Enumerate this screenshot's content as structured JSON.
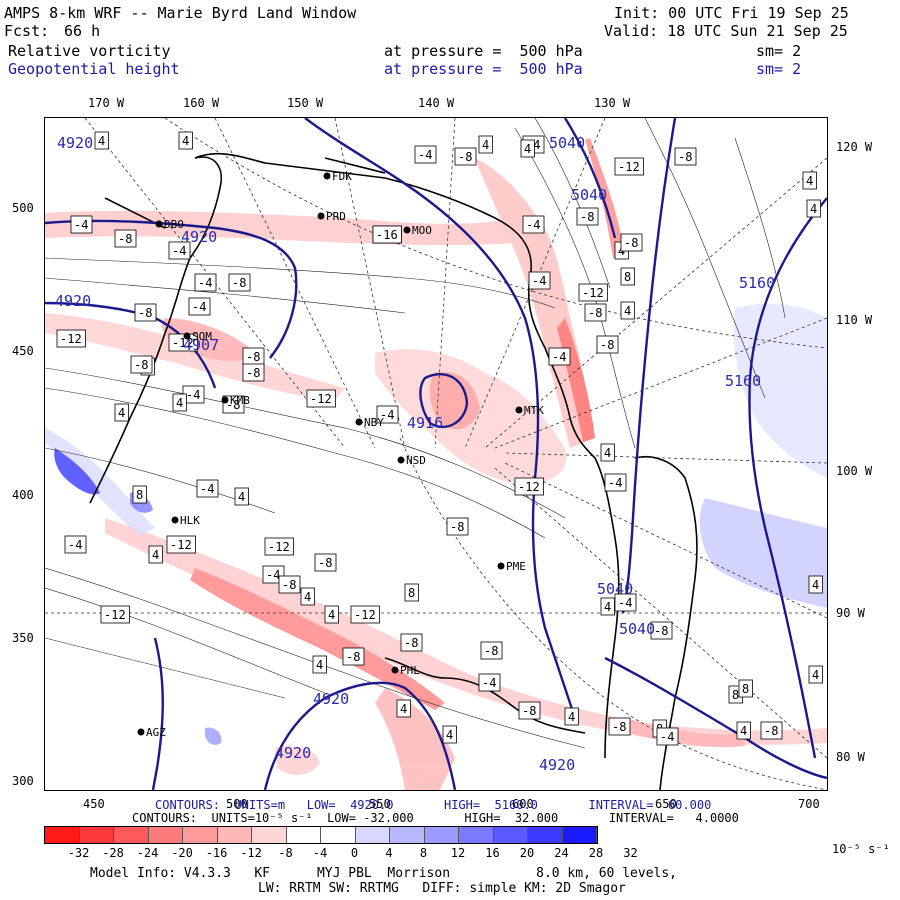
{
  "header": {
    "title": "AMPS 8-km WRF -- Marie Byrd Land Window",
    "init": "Init: 00 UTC Fri 19 Sep 25",
    "fcst_label": "Fcst:",
    "fcst_value": "66 h",
    "valid": "Valid: 18 UTC Sun 21 Sep 25",
    "field1_name": "Relative vorticity",
    "field1_level": "at pressure =  500 hPa",
    "field1_sm": "sm= 2",
    "field2_name": "Geopotential height",
    "field2_level": "at pressure =  500 hPa",
    "field2_sm": "sm= 2"
  },
  "top_lon_labels": [
    "170 W",
    "160 W",
    "150 W",
    "140 W",
    "130 W"
  ],
  "right_lon_labels": [
    "120 W",
    "110 W",
    "100 W",
    "90 W",
    "80 W"
  ],
  "left_ticks": [
    "500",
    "450",
    "400",
    "350",
    "300"
  ],
  "bottom_ticks": [
    "450",
    "500",
    "550",
    "600",
    "650",
    "700"
  ],
  "stations": [
    "FDK",
    "PRD",
    "MOO",
    "DBO",
    "SOM",
    "KMB",
    "NBY",
    "NSD",
    "MTK",
    "HLK",
    "PME",
    "PHL",
    "AGZ"
  ],
  "height_labels": [
    "4920",
    "4920",
    "4920",
    "4907",
    "4916",
    "5040",
    "5040",
    "5160",
    "5160",
    "5040",
    "5040",
    "4920",
    "4920",
    "4920"
  ],
  "vort_labels": [
    "4",
    "4",
    "-4",
    "-8",
    "-4",
    "4",
    "-8",
    "-4",
    "-8",
    "-4",
    "-8",
    "-12",
    "-16",
    "-12",
    "-8",
    "-4",
    "4",
    "-4",
    "-8",
    "-12",
    "-8",
    "-4",
    "-8",
    "-12",
    "4",
    "-4",
    "-8",
    "4",
    "-12",
    "-8",
    "-4",
    "4",
    "-4",
    "-12",
    "-8",
    "4",
    "-12",
    "-8",
    "-4",
    "-8",
    "4",
    "-8",
    "8",
    "4",
    "-4",
    "-8",
    "-12",
    "-4",
    "-8",
    "-4",
    "-12",
    "-8",
    "4",
    "8",
    "4",
    "-8",
    "4",
    "4",
    "-4",
    "-8",
    "8",
    "4",
    "-4",
    "-12",
    "4",
    "-4",
    "-4",
    "4",
    "-8",
    "-12",
    "4",
    "8",
    "4",
    "-8",
    "4",
    "8",
    "4",
    "4",
    "-4",
    "-8",
    "-8",
    "4",
    "8",
    "4"
  ],
  "contour_info": {
    "line1": "CONTOURS:  UNITS=m   LOW=  4920.0       HIGH=  5160.0       INTERVAL=  60.000",
    "line2": "CONTOURS:  UNITS=10⁻⁵ s⁻¹  LOW= -32.000       HIGH=  32.000       INTERVAL=   4.0000"
  },
  "colorbar": {
    "labels": [
      "-32",
      "-28",
      "-24",
      "-20",
      "-16",
      "-12",
      "-8",
      "-4",
      "0",
      "4",
      "8",
      "12",
      "16",
      "20",
      "24",
      "28",
      "32"
    ],
    "units": "10⁻⁵ s⁻¹",
    "colors": [
      "#ff1a1a",
      "#ff3a3a",
      "#ff5a5a",
      "#ff7a7a",
      "#ff9a9a",
      "#ffb8b8",
      "#ffd6d6",
      "#ffffff",
      "#ffffff",
      "#d8d8ff",
      "#b8b8ff",
      "#9a9aff",
      "#7a7aff",
      "#5a5aff",
      "#3a3aff",
      "#1a1aff"
    ]
  },
  "footer": {
    "line1": "Model Info: V4.3.3   KF      MYJ PBL  Morrison           8.0 km, 60 levels,",
    "line2": "LW: RRTM SW: RRTMG   DIFF: simple KM: 2D Smagor"
  }
}
